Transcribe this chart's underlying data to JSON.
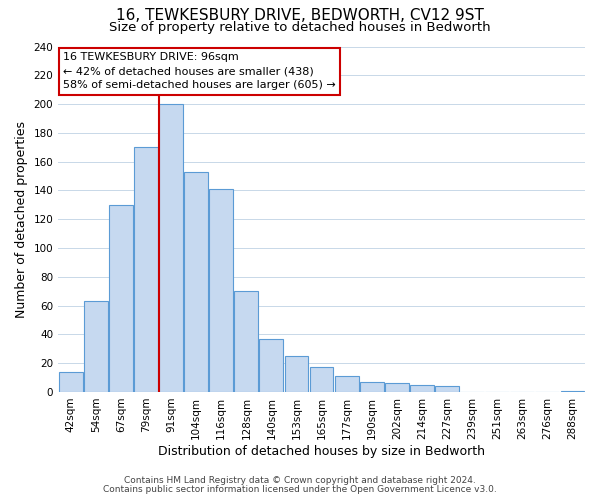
{
  "title": "16, TEWKESBURY DRIVE, BEDWORTH, CV12 9ST",
  "subtitle": "Size of property relative to detached houses in Bedworth",
  "xlabel": "Distribution of detached houses by size in Bedworth",
  "ylabel": "Number of detached properties",
  "bar_labels": [
    "42sqm",
    "54sqm",
    "67sqm",
    "79sqm",
    "91sqm",
    "104sqm",
    "116sqm",
    "128sqm",
    "140sqm",
    "153sqm",
    "165sqm",
    "177sqm",
    "190sqm",
    "202sqm",
    "214sqm",
    "227sqm",
    "239sqm",
    "251sqm",
    "263sqm",
    "276sqm",
    "288sqm"
  ],
  "bar_heights": [
    14,
    63,
    130,
    170,
    200,
    153,
    141,
    70,
    37,
    25,
    17,
    11,
    7,
    6,
    5,
    4,
    0,
    0,
    0,
    0,
    1
  ],
  "bar_color": "#c6d9f0",
  "bar_edge_color": "#5b9bd5",
  "vline_x_index": 4,
  "vline_color": "#cc0000",
  "annotation_title": "16 TEWKESBURY DRIVE: 96sqm",
  "annotation_line1": "← 42% of detached houses are smaller (438)",
  "annotation_line2": "58% of semi-detached houses are larger (605) →",
  "annotation_box_color": "#ffffff",
  "annotation_box_edge_color": "#cc0000",
  "ylim": [
    0,
    240
  ],
  "yticks": [
    0,
    20,
    40,
    60,
    80,
    100,
    120,
    140,
    160,
    180,
    200,
    220,
    240
  ],
  "footer_line1": "Contains HM Land Registry data © Crown copyright and database right 2024.",
  "footer_line2": "Contains public sector information licensed under the Open Government Licence v3.0.",
  "background_color": "#ffffff",
  "grid_color": "#c8d8e8",
  "title_fontsize": 11,
  "subtitle_fontsize": 9.5,
  "axis_label_fontsize": 9,
  "tick_fontsize": 7.5,
  "footer_fontsize": 6.5,
  "annotation_fontsize": 8
}
